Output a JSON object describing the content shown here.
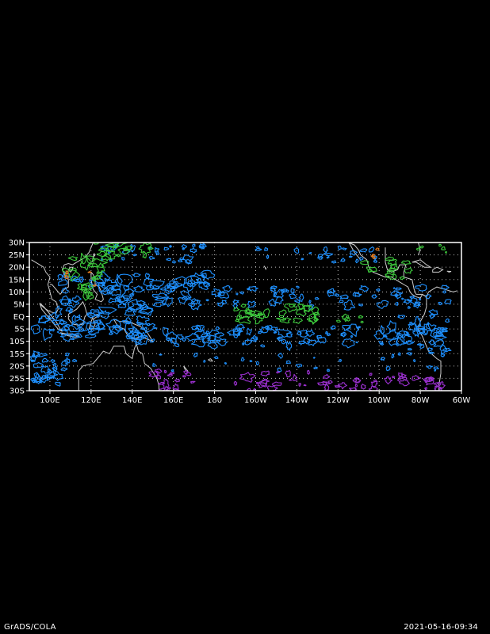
{
  "map": {
    "lat_labels": [
      "30N",
      "25N",
      "20N",
      "15N",
      "10N",
      "5N",
      "EQ",
      "5S",
      "10S",
      "15S",
      "20S",
      "25S",
      "30S"
    ],
    "lon_labels": [
      "100E",
      "120E",
      "140E",
      "160E",
      "180",
      "160W",
      "140W",
      "120W",
      "100W",
      "80W",
      "60W"
    ],
    "lon_range": [
      90,
      300
    ],
    "lat_range": [
      -30,
      30
    ],
    "colors": {
      "background": "#000000",
      "frame": "#ffffff",
      "coastline": "#cccccc",
      "grid": "#bbbbbb",
      "contour_blue": "#1e90ff",
      "contour_green": "#3cc83c",
      "contour_purple": "#9b30d0",
      "contour_orange": "#e07a20"
    },
    "legend": {
      "contours": [
        "blue",
        "green",
        "purple",
        "orange"
      ]
    }
  },
  "footer": {
    "left": "GrADS/COLA",
    "right": "2021-05-16-09:34"
  }
}
